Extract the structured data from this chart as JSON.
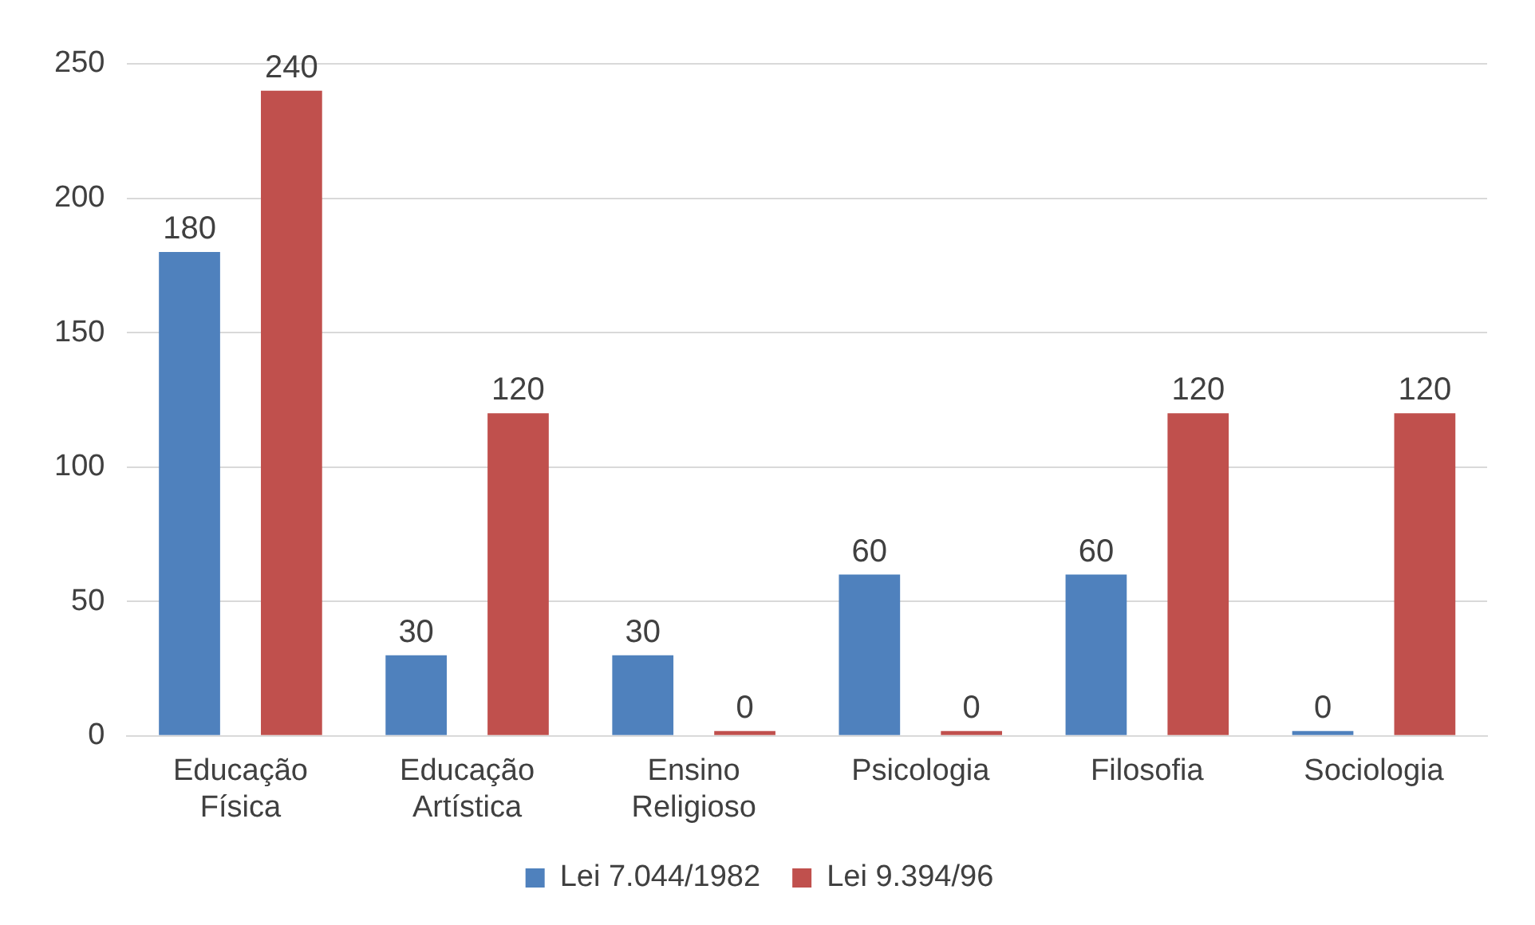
{
  "chart_data": {
    "type": "bar",
    "categories": [
      "Educação Física",
      "Educação Artística",
      "Ensino Religioso",
      "Psicologia",
      "Filosofia",
      "Sociologia"
    ],
    "series": [
      {
        "name": "Lei 7.044/1982",
        "color": "#4f81bd",
        "values": [
          180,
          30,
          30,
          60,
          60,
          0
        ]
      },
      {
        "name": "Lei 9.394/96",
        "color": "#c0504d",
        "values": [
          240,
          120,
          0,
          0,
          120,
          120
        ]
      }
    ],
    "ylim": [
      0,
      250
    ],
    "yticks": [
      0,
      50,
      100,
      150,
      200,
      250
    ],
    "grid": "y",
    "legend": "bottom",
    "data_labels": true
  }
}
